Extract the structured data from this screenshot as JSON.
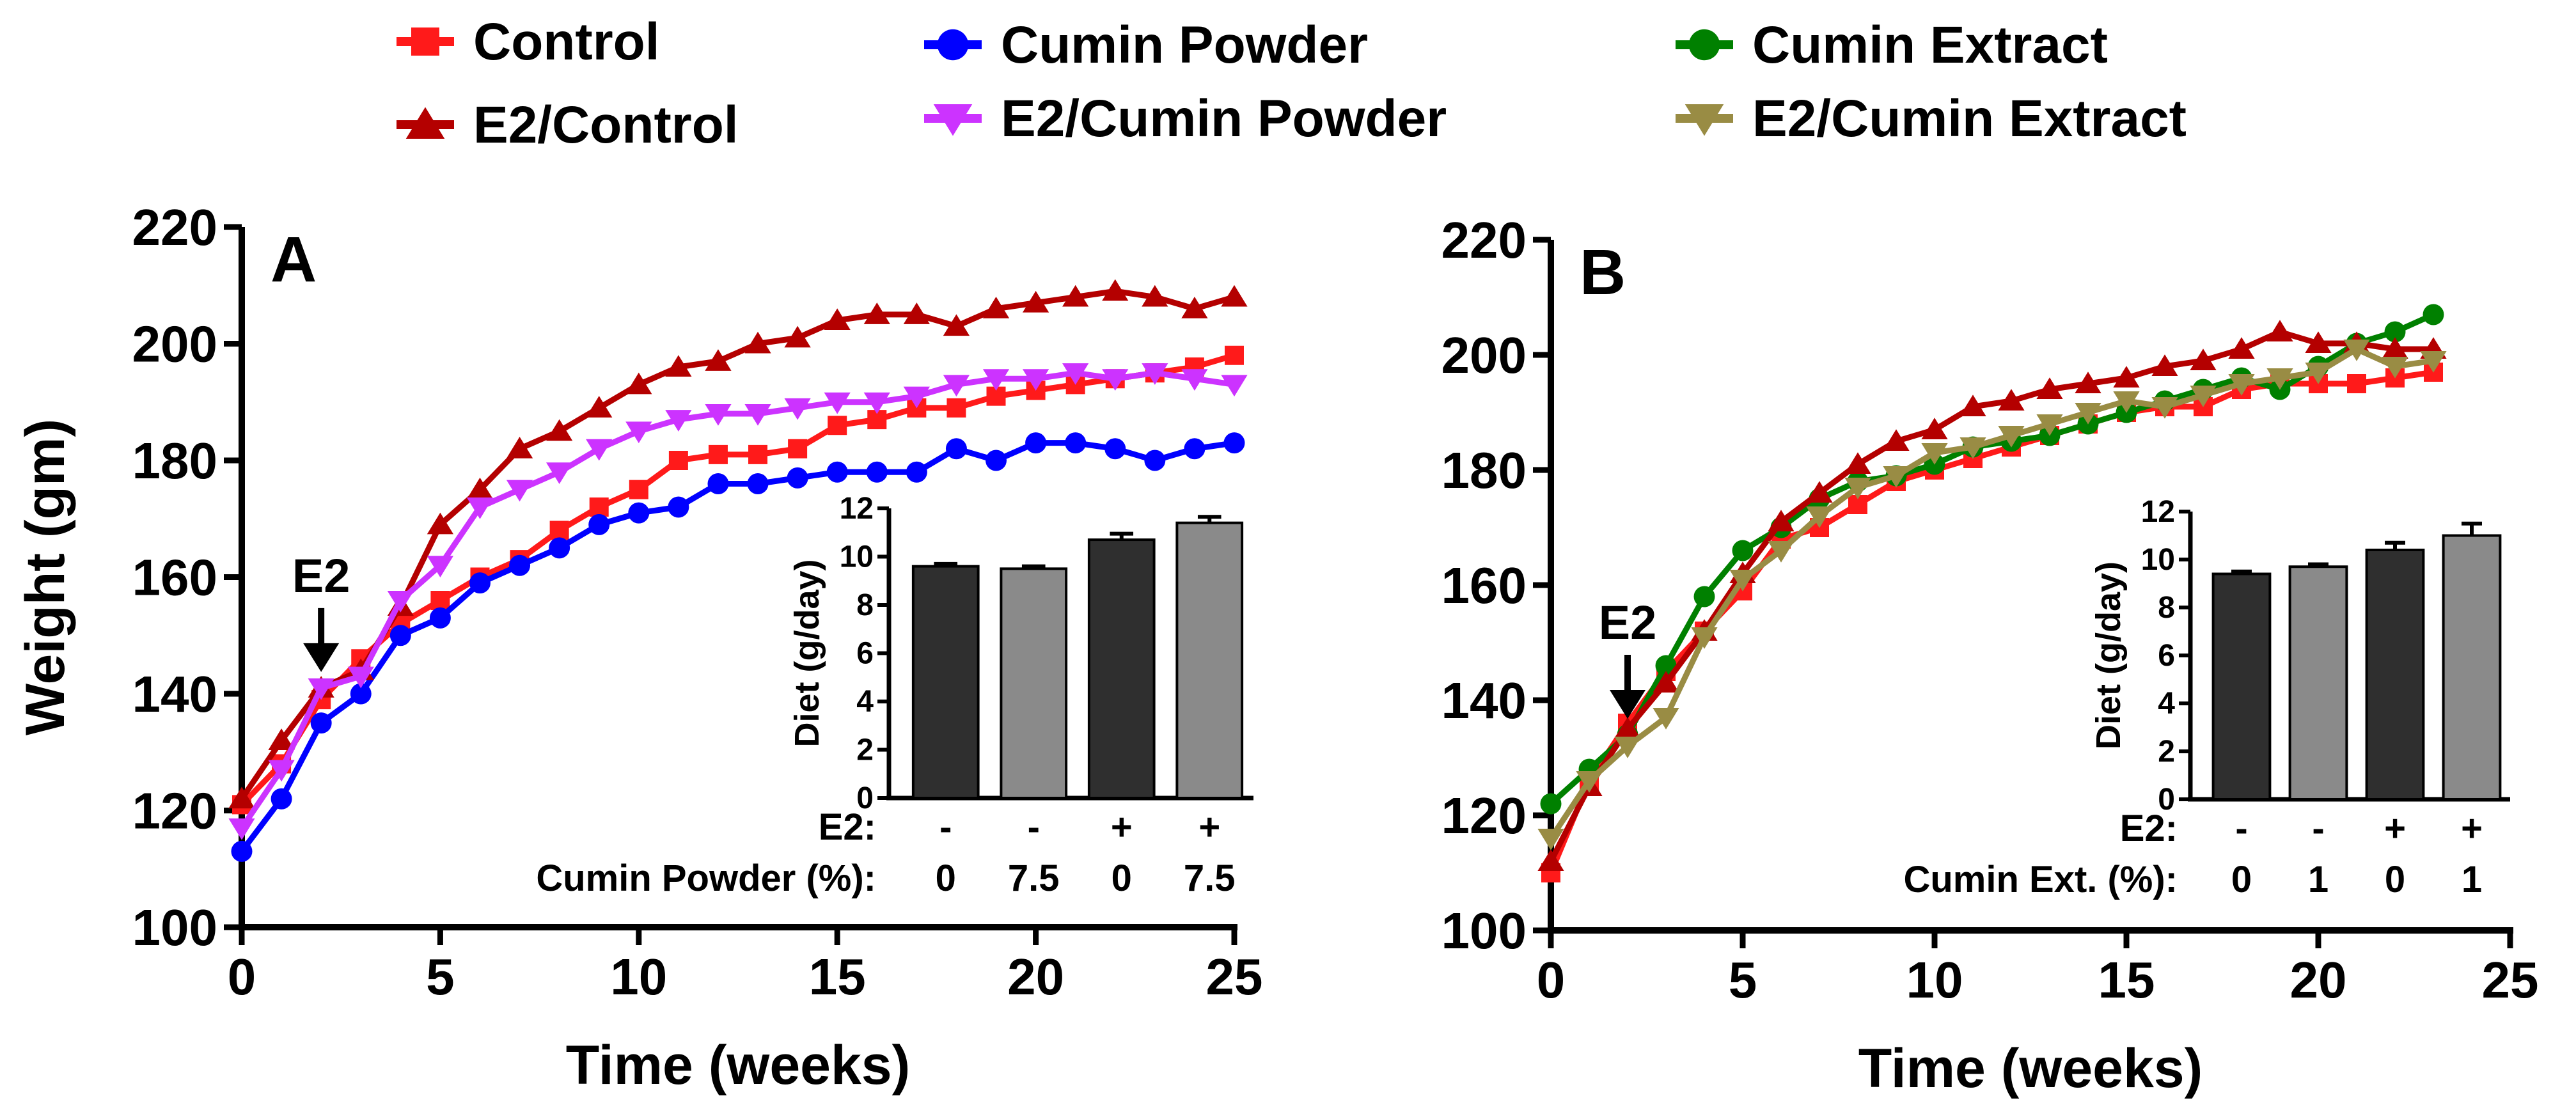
{
  "colors": {
    "control": "#ff1a1a",
    "cumin_powder": "#0000ff",
    "cumin_extract": "#008000",
    "e2_control": "#b40000",
    "e2_cumin_powder": "#cc33ff",
    "e2_cumin_extract": "#998c44",
    "bar_dark": "#2f2f2f",
    "bar_light": "#8a8a8a"
  },
  "legend": [
    {
      "name": "Control",
      "series": "control",
      "marker": "square"
    },
    {
      "name": "Cumin Powder",
      "series": "cumin_powder",
      "marker": "circle"
    },
    {
      "name": "Cumin Extract",
      "series": "cumin_extract",
      "marker": "circle"
    },
    {
      "name": "E2/Control",
      "series": "e2_control",
      "marker": "triangle-up"
    },
    {
      "name": "E2/Cumin Powder",
      "series": "e2_cumin_powder",
      "marker": "triangle-down"
    },
    {
      "name": "E2/Cumin Extract",
      "series": "e2_cumin_extract",
      "marker": "triangle-down"
    }
  ],
  "chart_data": [
    {
      "type": "line",
      "panel_label": "A",
      "xlabel": "Time (weeks)",
      "ylabel": "Weight (gm)",
      "xlim": [
        0,
        25
      ],
      "ylim": [
        100,
        220
      ],
      "xticks": [
        "0",
        "5",
        "10",
        "15",
        "20",
        "25"
      ],
      "yticks": [
        "100",
        "120",
        "140",
        "160",
        "180",
        "200",
        "220"
      ],
      "annotation": {
        "text": "E2",
        "x": 2,
        "y": 141
      },
      "series": [
        {
          "name": "Control",
          "key": "control",
          "marker": "square",
          "x": [
            0,
            1,
            2,
            3,
            4,
            5,
            6,
            7,
            8,
            9,
            10,
            11,
            12,
            13,
            14,
            15,
            16,
            17,
            18,
            19,
            20,
            21,
            22,
            23,
            24,
            25
          ],
          "values": [
            121,
            128,
            139,
            146,
            152,
            156,
            160,
            163,
            168,
            172,
            175,
            180,
            181,
            181,
            182,
            186,
            187,
            189,
            189,
            191,
            192,
            193,
            194,
            195,
            196,
            198
          ]
        },
        {
          "name": "Cumin Powder",
          "key": "cumin_powder",
          "marker": "circle",
          "x": [
            0,
            1,
            2,
            3,
            4,
            5,
            6,
            7,
            8,
            9,
            10,
            11,
            12,
            13,
            14,
            15,
            16,
            17,
            18,
            19,
            20,
            21,
            22,
            23,
            24,
            25
          ],
          "values": [
            113,
            122,
            135,
            140,
            150,
            153,
            159,
            162,
            165,
            169,
            171,
            172,
            176,
            176,
            177,
            178,
            178,
            178,
            182,
            180,
            183,
            183,
            182,
            180,
            182,
            183
          ]
        },
        {
          "name": "E2/Control",
          "key": "e2_control",
          "marker": "triangle-up",
          "x": [
            0,
            1,
            2,
            3,
            4,
            5,
            6,
            7,
            8,
            9,
            10,
            11,
            12,
            13,
            14,
            15,
            16,
            17,
            18,
            19,
            20,
            21,
            22,
            23,
            24,
            25
          ],
          "values": [
            122,
            132,
            141,
            144,
            155,
            169,
            175,
            182,
            185,
            189,
            193,
            196,
            197,
            200,
            201,
            204,
            205,
            205,
            203,
            206,
            207,
            208,
            209,
            208,
            206,
            208
          ]
        },
        {
          "name": "E2/Cumin Powder",
          "key": "e2_cumin_powder",
          "marker": "triangle-down",
          "x": [
            0,
            1,
            2,
            3,
            4,
            5,
            6,
            7,
            8,
            9,
            10,
            11,
            12,
            13,
            14,
            15,
            16,
            17,
            18,
            19,
            20,
            21,
            22,
            23,
            24,
            25
          ],
          "values": [
            117,
            127,
            141,
            143,
            156,
            162,
            172,
            175,
            178,
            182,
            185,
            187,
            188,
            188,
            189,
            190,
            190,
            191,
            193,
            194,
            194,
            195,
            194,
            195,
            194,
            193
          ]
        }
      ],
      "inset": {
        "type": "bar",
        "ylabel": "Diet (g/day)",
        "ylim": [
          0,
          12
        ],
        "yticks": [
          "0",
          "2",
          "4",
          "6",
          "8",
          "10",
          "12"
        ],
        "values": [
          9.6,
          9.5,
          10.7,
          11.4
        ],
        "errors": [
          0.1,
          0.1,
          0.25,
          0.25
        ],
        "row1_label": "E2:",
        "row1": [
          "-",
          "-",
          "+",
          "+"
        ],
        "row2_label": "Cumin Powder (%):",
        "row2": [
          "0",
          "7.5",
          "0",
          "7.5"
        ]
      }
    },
    {
      "type": "line",
      "panel_label": "B",
      "xlabel": "Time (weeks)",
      "ylabel": "",
      "xlim": [
        0,
        25
      ],
      "ylim": [
        100,
        220
      ],
      "xticks": [
        "0",
        "5",
        "10",
        "15",
        "20",
        "25"
      ],
      "yticks": [
        "100",
        "120",
        "140",
        "160",
        "180",
        "200",
        "220"
      ],
      "annotation": {
        "text": "E2",
        "x": 2,
        "y": 134
      },
      "series": [
        {
          "name": "Control",
          "key": "control",
          "marker": "square",
          "x": [
            0,
            1,
            2,
            3,
            4,
            5,
            6,
            7,
            8,
            9,
            10,
            11,
            12,
            13,
            14,
            15,
            16,
            17,
            18,
            19,
            20,
            21,
            22,
            23
          ],
          "values": [
            110,
            126,
            136,
            145,
            152,
            159,
            168,
            170,
            174,
            178,
            180,
            182,
            184,
            186,
            188,
            190,
            191,
            191,
            194,
            195,
            195,
            195,
            196,
            197
          ]
        },
        {
          "name": "Cumin Extract",
          "key": "cumin_extract",
          "marker": "circle",
          "x": [
            0,
            1,
            2,
            3,
            4,
            5,
            6,
            7,
            8,
            9,
            10,
            11,
            12,
            13,
            14,
            15,
            16,
            17,
            18,
            19,
            20,
            21,
            22,
            23
          ],
          "values": [
            122,
            128,
            134,
            146,
            158,
            166,
            170,
            175,
            178,
            179,
            181,
            184,
            185,
            186,
            188,
            190,
            192,
            194,
            196,
            194,
            198,
            202,
            204,
            207
          ]
        },
        {
          "name": "E2/Control",
          "key": "e2_control",
          "marker": "triangle-up",
          "x": [
            0,
            1,
            2,
            3,
            4,
            5,
            6,
            7,
            8,
            9,
            10,
            11,
            12,
            13,
            14,
            15,
            16,
            17,
            18,
            19,
            20,
            21,
            22,
            23
          ],
          "values": [
            112,
            125,
            135,
            143,
            152,
            162,
            171,
            176,
            181,
            185,
            187,
            191,
            192,
            194,
            195,
            196,
            198,
            199,
            201,
            204,
            202,
            202,
            201,
            201
          ]
        },
        {
          "name": "E2/Cumin Extract",
          "key": "e2_cumin_extract",
          "marker": "triangle-down",
          "x": [
            0,
            1,
            2,
            3,
            4,
            5,
            6,
            7,
            8,
            9,
            10,
            11,
            12,
            13,
            14,
            15,
            16,
            17,
            18,
            19,
            20,
            21,
            22,
            23
          ],
          "values": [
            116,
            126,
            132,
            137,
            151,
            161,
            166,
            172,
            177,
            179,
            183,
            184,
            186,
            188,
            190,
            192,
            191,
            193,
            195,
            196,
            197,
            201,
            198,
            199
          ]
        }
      ],
      "inset": {
        "type": "bar",
        "ylabel": "Diet (g/day)",
        "ylim": [
          0,
          12
        ],
        "yticks": [
          "0",
          "2",
          "4",
          "6",
          "8",
          "10",
          "12"
        ],
        "values": [
          9.4,
          9.7,
          10.4,
          11.0
        ],
        "errors": [
          0.1,
          0.1,
          0.3,
          0.5
        ],
        "row1_label": "E2:",
        "row1": [
          "-",
          "-",
          "+",
          "+"
        ],
        "row2_label": "Cumin Ext. (%):",
        "row2": [
          "0",
          "1",
          "0",
          "1"
        ]
      }
    }
  ]
}
